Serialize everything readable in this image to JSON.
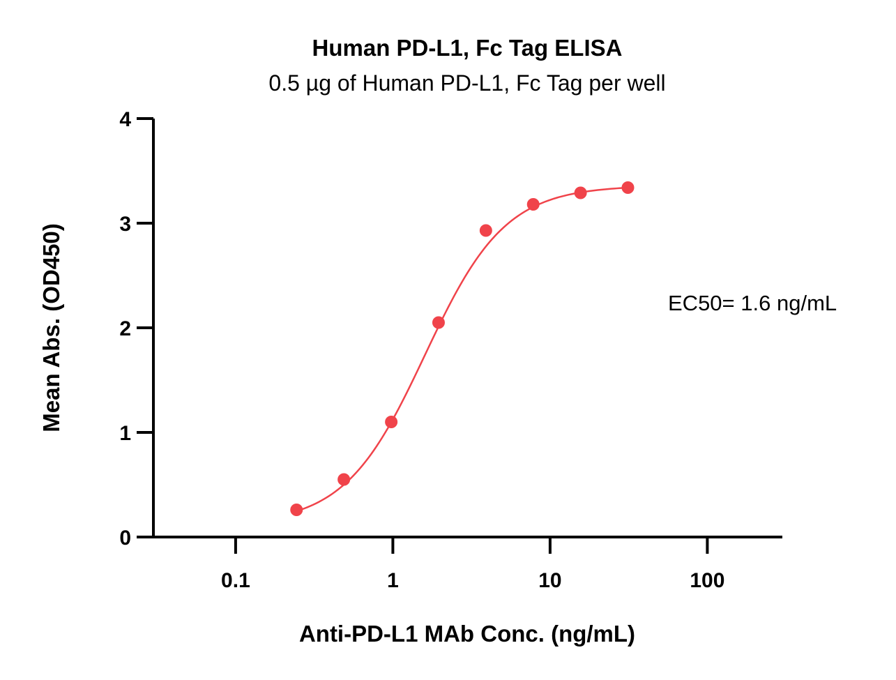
{
  "chart_data": {
    "type": "scatter",
    "title": "Human PD-L1, Fc Tag ELISA",
    "subtitle": "0.5 µg of Human PD-L1, Fc Tag per well",
    "xlabel": "Anti-PD-L1 MAb Conc. (ng/mL)",
    "ylabel": "Mean Abs. (OD450)",
    "x_scale": "log",
    "xlim": [
      0.03,
      300
    ],
    "ylim": [
      0,
      4
    ],
    "x_ticks": [
      0.1,
      1,
      10,
      100
    ],
    "x_tick_labels": [
      "0.1",
      "1",
      "10",
      "100"
    ],
    "y_ticks": [
      0,
      1,
      2,
      3,
      4
    ],
    "y_tick_labels": [
      "0",
      "1",
      "2",
      "3",
      "4"
    ],
    "grid": false,
    "annotation": "EC50= 1.6 ng/mL",
    "point_color": "#f0434a",
    "series": [
      {
        "x": [
          0.244,
          0.488,
          0.977,
          1.953,
          3.906,
          7.813,
          15.625,
          31.25
        ],
        "y": [
          0.26,
          0.55,
          1.1,
          2.05,
          2.93,
          3.18,
          3.29,
          3.34
        ],
        "fit": {
          "model": "4PL",
          "bottom": 0.12,
          "top": 3.36,
          "ec50": 1.6,
          "hill": 1.7
        }
      }
    ]
  }
}
